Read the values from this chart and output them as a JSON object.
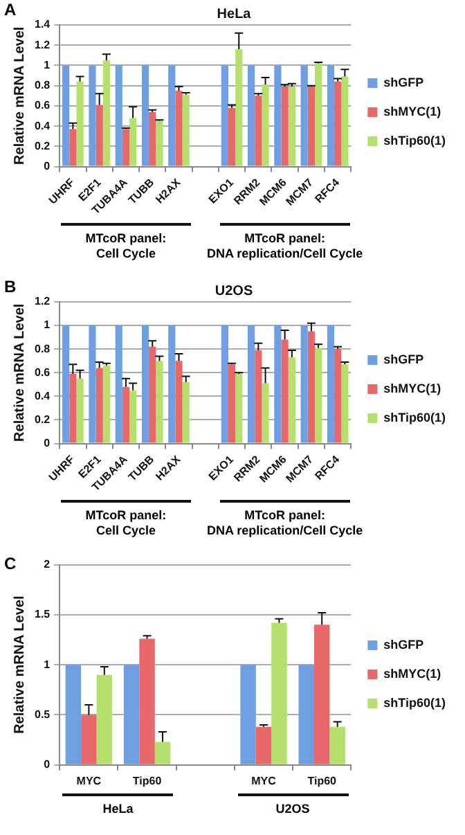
{
  "chart_data": [
    {
      "type": "bar",
      "title": "HeLa",
      "ylabel": "Relative mRNA Level",
      "annotations": [
        "A",
        "MTcoR panel:\nCell Cycle",
        "MTcoR panel:\nDNA replication/Cell Cycle"
      ],
      "categories": [
        "UHRF",
        "E2F1",
        "TUBA4A",
        "TUBB",
        "H2AX",
        null,
        "EXO1",
        "RRM2",
        "MCM6",
        "MCM7",
        "RFC4"
      ],
      "series": [
        {
          "name": "shGFP",
          "color": "#6f9fe3",
          "values": [
            1,
            1,
            1,
            1,
            1,
            null,
            1,
            1,
            1,
            1,
            1
          ]
        },
        {
          "name": "shMYC(1)",
          "color": "#e8676b",
          "values": [
            0.37,
            0.61,
            0.37,
            0.54,
            0.75,
            null,
            0.58,
            0.7,
            0.79,
            0.79,
            0.84
          ],
          "errors": [
            [
              0.37,
              0.43
            ],
            [
              0.61,
              0.72
            ],
            [
              0.37,
              0.38
            ],
            [
              0.54,
              0.56
            ],
            [
              0.75,
              0.79
            ],
            null,
            [
              0.58,
              0.61
            ],
            [
              0.7,
              0.72
            ],
            [
              0.79,
              0.81
            ],
            [
              0.79,
              0.8
            ],
            [
              0.84,
              0.87
            ]
          ]
        },
        {
          "name": "shTip60(1)",
          "color": "#b6e06c",
          "values": [
            0.84,
            1.05,
            0.48,
            0.45,
            0.71,
            null,
            1.16,
            0.81,
            0.79,
            1.02,
            0.89
          ],
          "errors": [
            [
              0.84,
              0.89
            ],
            [
              1.05,
              1.11
            ],
            [
              0.48,
              0.59
            ],
            [
              0.45,
              0.46
            ],
            [
              0.71,
              0.73
            ],
            null,
            [
              1.16,
              1.32
            ],
            [
              0.81,
              0.88
            ],
            [
              0.79,
              0.82
            ],
            [
              1.02,
              1.03
            ],
            [
              0.89,
              0.96
            ]
          ]
        }
      ],
      "ylim": [
        0,
        1.4
      ],
      "yticks": [
        0,
        0.2,
        0.4,
        0.6,
        0.8,
        1,
        1.2,
        1.4
      ],
      "grid": "y",
      "legend": "right"
    },
    {
      "type": "bar",
      "title": "U2OS",
      "ylabel": "Relative mRNA Level",
      "annotations": [
        "B",
        "MTcoR panel:\nCell Cycle",
        "MTcoR panel:\nDNA replication/Cell Cycle"
      ],
      "categories": [
        "UHRF",
        "E2F1",
        "TUBA4A",
        "TUBB",
        "H2AX",
        null,
        "EXO1",
        "RRM2",
        "MCM6",
        "MCM7",
        "RFC4"
      ],
      "series": [
        {
          "name": "shGFP",
          "color": "#6f9fe3",
          "values": [
            1,
            1,
            1,
            1,
            1,
            null,
            1,
            1,
            1,
            1,
            1
          ]
        },
        {
          "name": "shMYC(1)",
          "color": "#e8676b",
          "values": [
            0.59,
            0.64,
            0.48,
            0.82,
            0.7,
            null,
            0.67,
            0.79,
            0.88,
            0.95,
            0.8
          ],
          "errors": [
            [
              0.59,
              0.67
            ],
            [
              0.64,
              0.69
            ],
            [
              0.48,
              0.55
            ],
            [
              0.82,
              0.87
            ],
            [
              0.7,
              0.76
            ],
            null,
            [
              0.67,
              0.68
            ],
            [
              0.79,
              0.85
            ],
            [
              0.88,
              0.96
            ],
            [
              0.95,
              1.02
            ],
            [
              0.8,
              0.82
            ]
          ]
        },
        {
          "name": "shTip60(1)",
          "color": "#b6e06c",
          "values": [
            0.55,
            0.66,
            0.45,
            0.7,
            0.52,
            null,
            0.59,
            0.51,
            0.73,
            0.81,
            0.67
          ],
          "errors": [
            [
              0.55,
              0.62
            ],
            [
              0.66,
              0.68
            ],
            [
              0.45,
              0.51
            ],
            [
              0.7,
              0.74
            ],
            [
              0.52,
              0.57
            ],
            null,
            [
              0.59,
              0.6
            ],
            [
              0.51,
              0.64
            ],
            [
              0.73,
              0.79
            ],
            [
              0.81,
              0.84
            ],
            [
              0.67,
              0.69
            ]
          ]
        }
      ],
      "ylim": [
        0,
        1.2
      ],
      "yticks": [
        0,
        0.2,
        0.4,
        0.6,
        0.8,
        1,
        1.2
      ],
      "grid": "y",
      "legend": "right"
    },
    {
      "type": "bar",
      "ylabel": "Relative mRNA Level",
      "annotations": [
        "C",
        "HeLa",
        "U2OS"
      ],
      "categories": [
        "MYC",
        "Tip60",
        null,
        "MYC",
        "Tip60"
      ],
      "series": [
        {
          "name": "shGFP",
          "color": "#6f9fe3",
          "values": [
            1,
            1,
            null,
            1,
            1
          ]
        },
        {
          "name": "shMYC(1)",
          "color": "#e8676b",
          "values": [
            0.5,
            1.26,
            null,
            0.38,
            1.4
          ],
          "errors": [
            [
              0.5,
              0.6
            ],
            [
              1.26,
              1.29
            ],
            null,
            [
              0.38,
              0.4
            ],
            [
              1.4,
              1.52
            ]
          ]
        },
        {
          "name": "shTip60(1)",
          "color": "#b6e06c",
          "values": [
            0.9,
            0.23,
            null,
            1.42,
            0.38
          ],
          "errors": [
            [
              0.9,
              0.98
            ],
            [
              0.23,
              0.33
            ],
            null,
            [
              1.42,
              1.46
            ],
            [
              0.38,
              0.43
            ]
          ]
        }
      ],
      "ylim": [
        0,
        2
      ],
      "yticks": [
        0,
        0.5,
        1,
        1.5,
        2
      ],
      "grid": "y",
      "legend": "right"
    }
  ]
}
